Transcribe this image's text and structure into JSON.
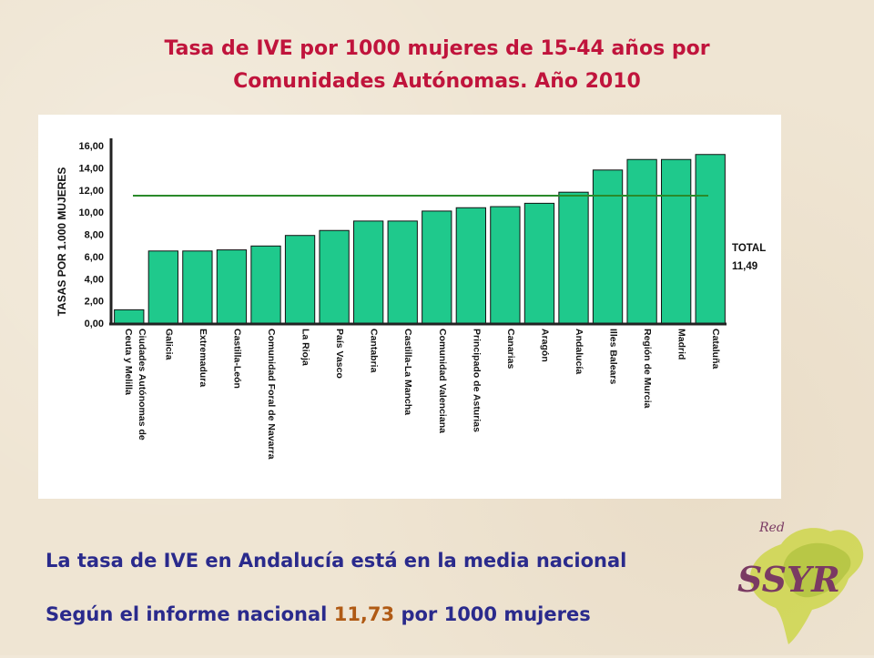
{
  "title": {
    "line1": "Tasa de IVE por 1000 mujeres de 15-44 años por",
    "line2": "Comunidades Autónomas. Año 2010"
  },
  "chart_data": {
    "type": "bar",
    "ylabel": "TASAS POR 1.000 MUJERES",
    "ylim": [
      0,
      16
    ],
    "y_ticks": [
      "0,00",
      "2,00",
      "4,00",
      "6,00",
      "8,00",
      "10,00",
      "12,00",
      "14,00",
      "16,00"
    ],
    "categories": [
      "Ciudades Autónomas de Ceuta y Melilla",
      "Galicia",
      "Extremadura",
      "Castilla-León",
      "Comunidad Foral de Navarra",
      "La Rioja",
      "País Vasco",
      "Cantabria",
      "Castilla-La Mancha",
      "Comunidad Valenciana",
      "Principado de Asturias",
      "Canarias",
      "Aragón",
      "Andalucía",
      "Illes Balears",
      "Región de Murcia",
      "Madrid",
      "Cataluña"
    ],
    "values": [
      1.2,
      6.5,
      6.5,
      6.6,
      6.95,
      7.9,
      8.35,
      9.2,
      9.2,
      10.1,
      10.4,
      10.5,
      10.8,
      11.8,
      13.8,
      14.75,
      14.75,
      15.2
    ],
    "bar_color": "#1fc98c",
    "reference_line": {
      "label": "TOTAL",
      "value_text": "11,49",
      "value": 11.49,
      "color": "#2a8a2a"
    },
    "grid": false
  },
  "notes": {
    "line1": "La tasa de IVE en Andalucía está en la media nacional",
    "line2_before": "Según el informe nacional ",
    "line2_value": "11,73",
    "line2_after": " por 1000 mujeres"
  },
  "logo": {
    "small_text": "Red",
    "main_text": "SSYR"
  },
  "colors": {
    "title": "#c0143c",
    "notes": "#2a2a8c",
    "highlight": "#b05a14",
    "panel": "#ffffff"
  }
}
